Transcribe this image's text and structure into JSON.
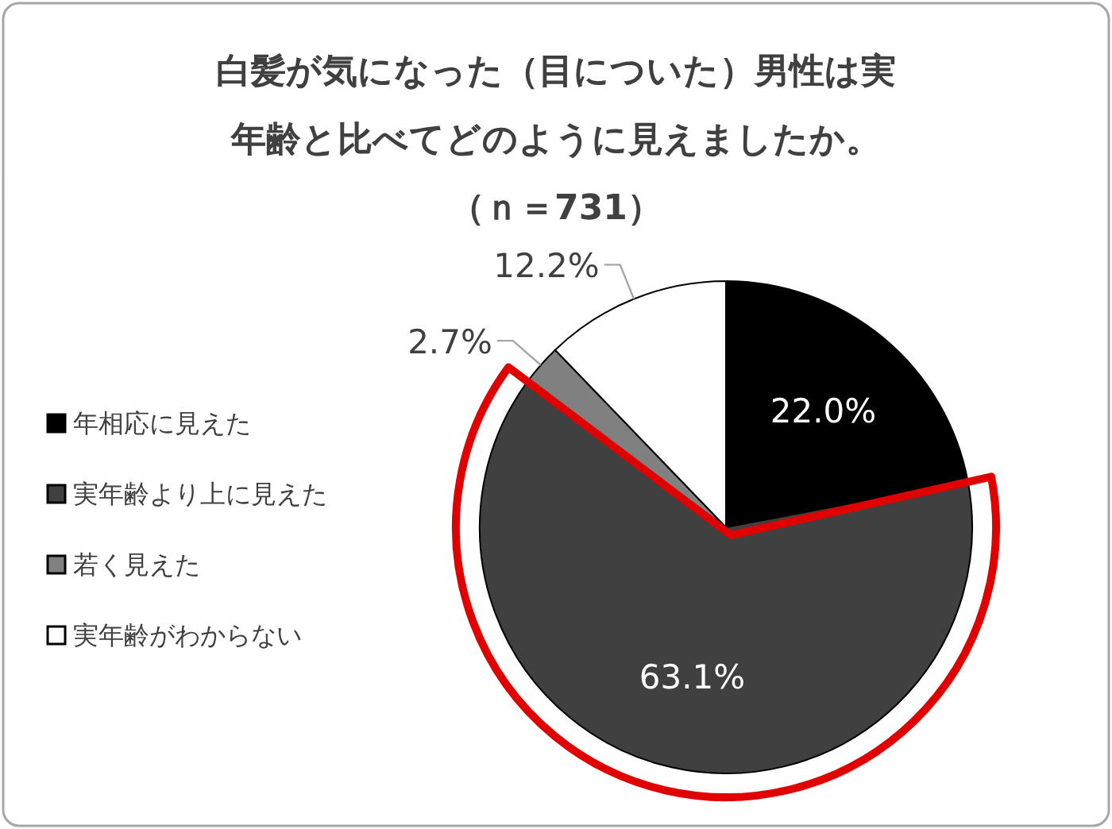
{
  "chart_data": {
    "type": "pie",
    "title": "白髪が気になった（目についた）男性は実年齢と比べてどのように見えましたか。",
    "subtitle": "（ｎ＝731）",
    "categories": [
      "年相応に見えた",
      "実年齢より上に見えた",
      "若く見えた",
      "実年齢がわからない"
    ],
    "values": [
      22.0,
      63.1,
      2.7,
      12.2
    ],
    "colors": [
      "#000000",
      "#404040",
      "#808080",
      "#ffffff"
    ],
    "value_labels": [
      "22.0%",
      "63.1%",
      "2.7%",
      "12.2%"
    ],
    "legend": "left"
  }
}
